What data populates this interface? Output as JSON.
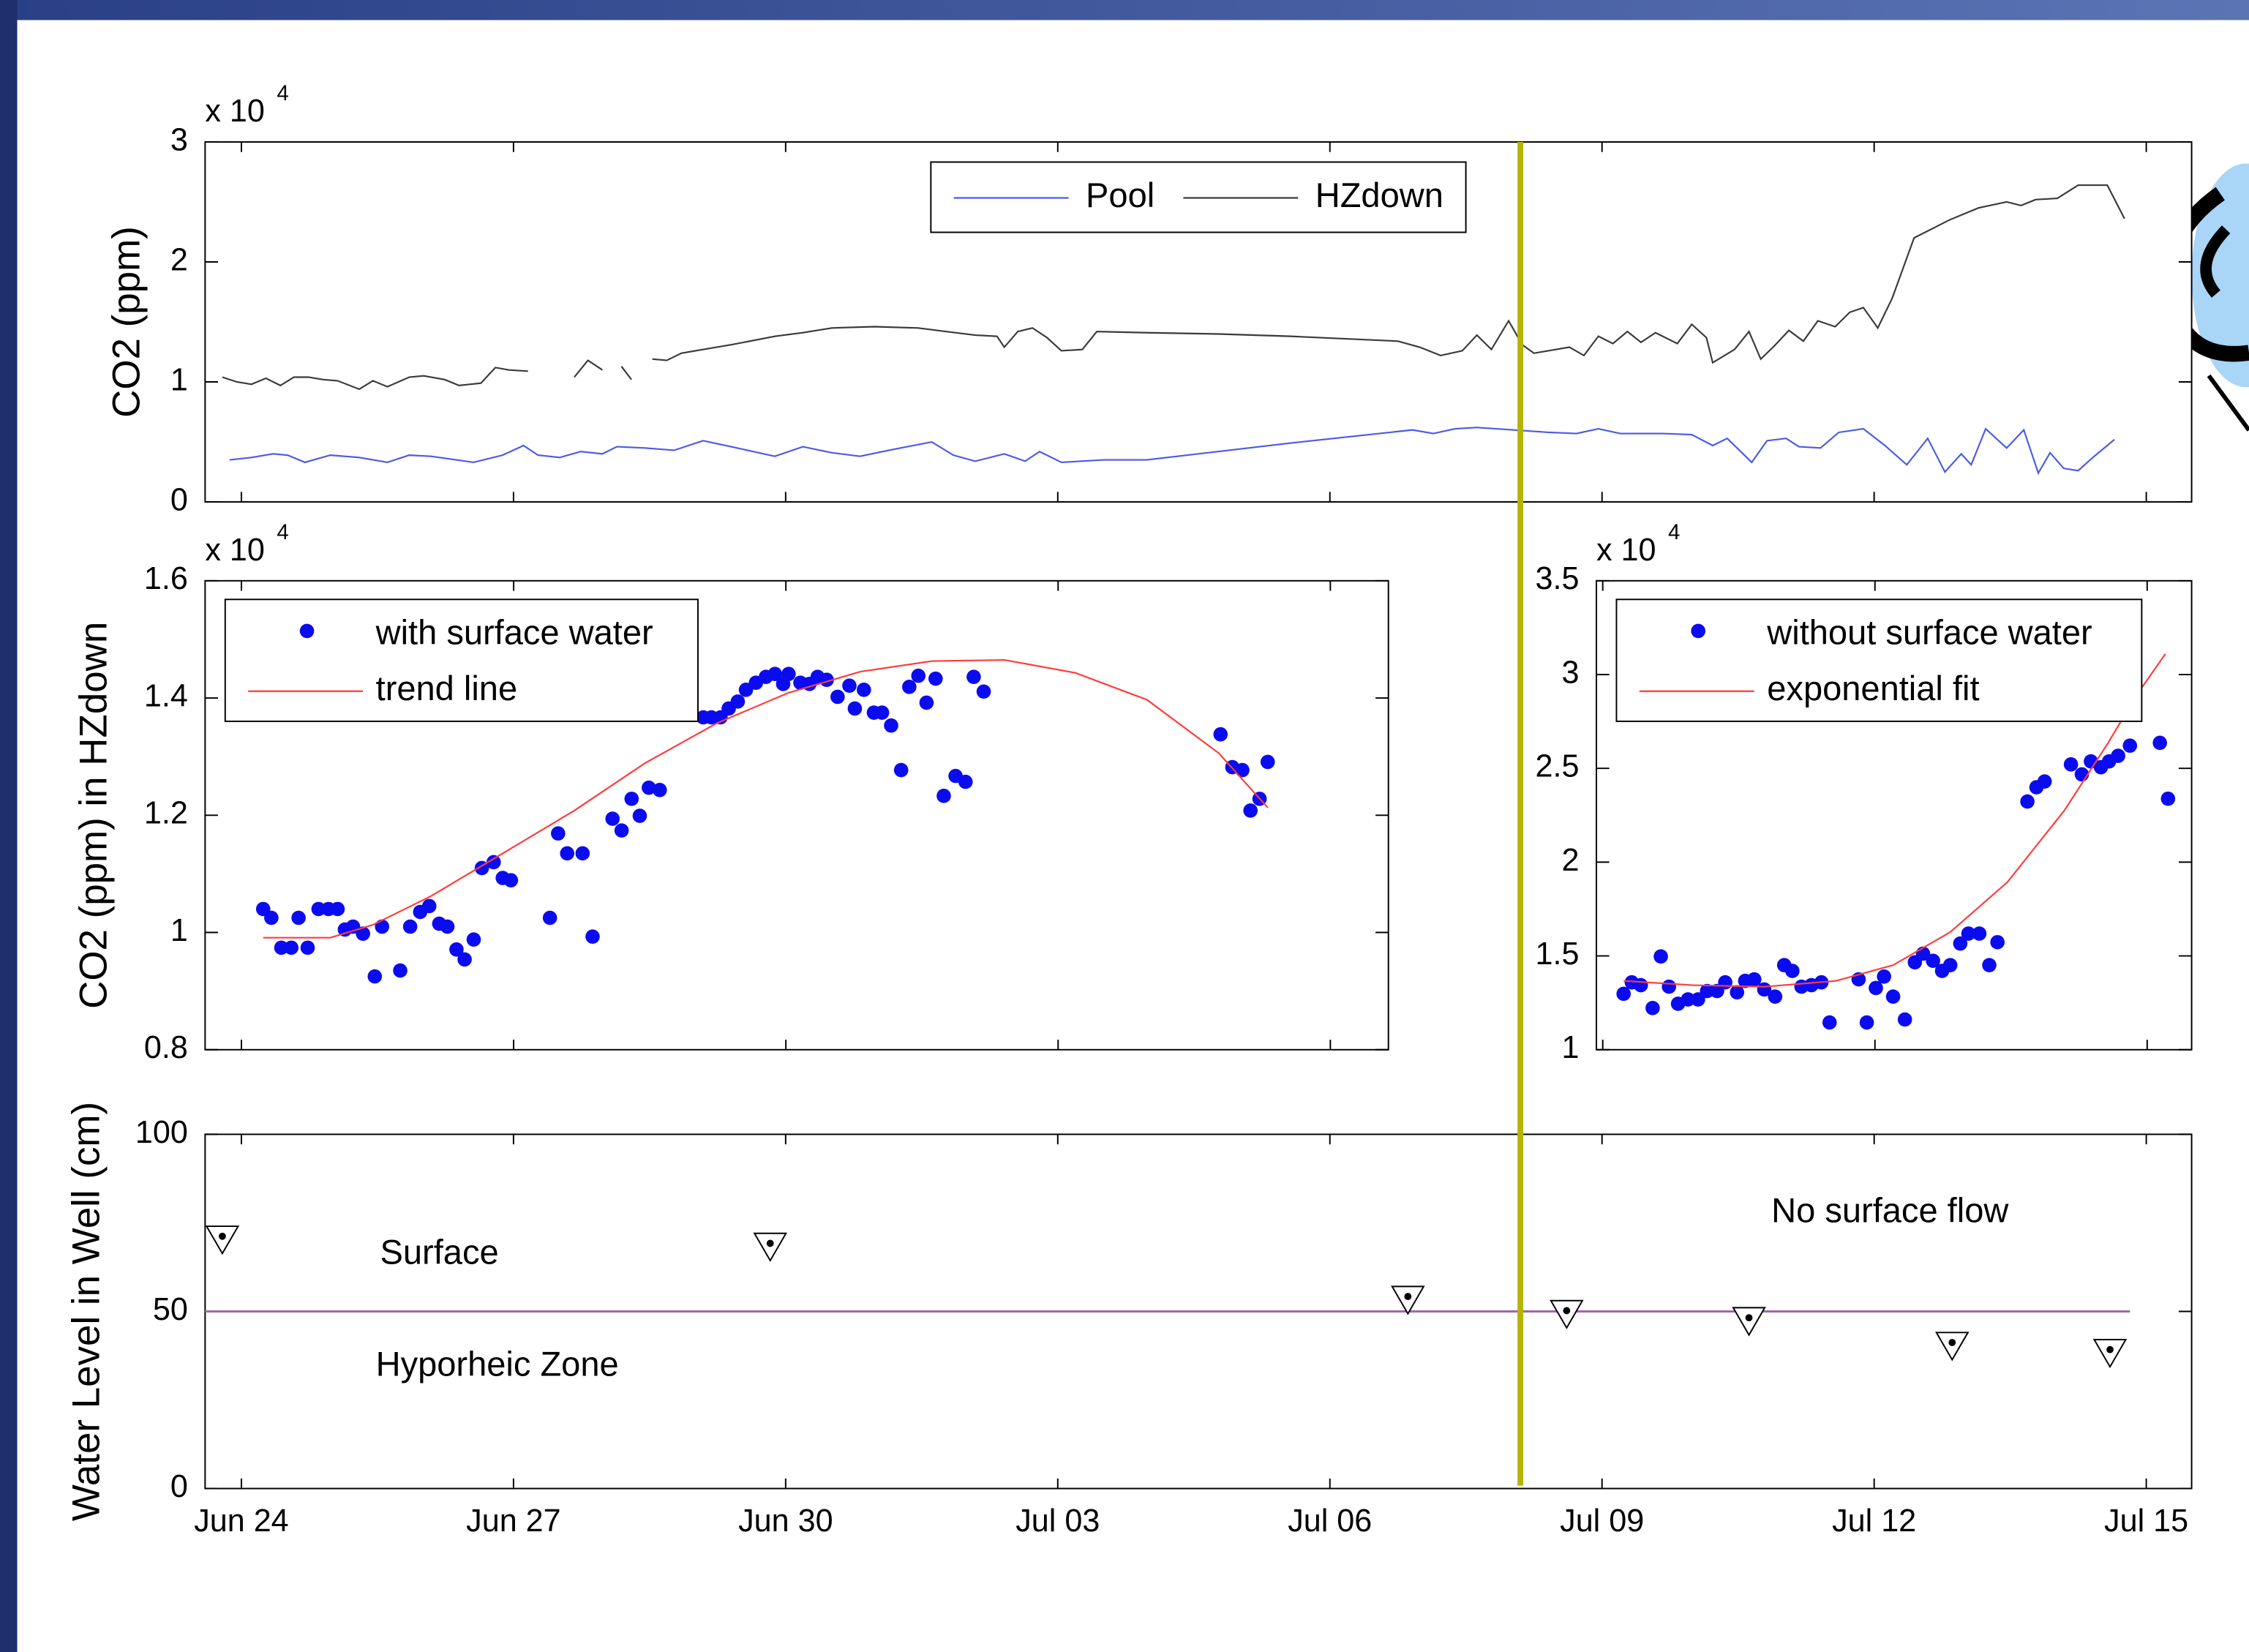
{
  "chart_data": [
    {
      "type": "line",
      "y_label": "CO2 (ppm)",
      "y_scale_label": {
        "base": "x 10",
        "exponent": "4"
      },
      "xlim": [
        -0.4,
        21.5
      ],
      "ylim": [
        0,
        30000
      ],
      "yticks": [
        0,
        {
          "value": 10000,
          "label": "1"
        },
        {
          "value": 20000,
          "label": "2"
        },
        {
          "value": 30000,
          "label": "3"
        }
      ],
      "legend": "top",
      "series": [
        {
          "name": "Pool",
          "color": "#4a5ae8",
          "x": [
            -0.13,
            0.11,
            0.35,
            0.51,
            0.7,
            0.98,
            1.3,
            1.61,
            1.85,
            2.09,
            2.56,
            2.88,
            3.11,
            3.27,
            3.51,
            3.74,
            3.98,
            4.14,
            4.45,
            4.77,
            5.09,
            5.4,
            5.88,
            6.19,
            6.51,
            6.82,
            7.14,
            7.61,
            7.85,
            8.09,
            8.41,
            8.64,
            8.8,
            9.04,
            9.51,
            9.98,
            11.56,
            12.91,
            13.14,
            13.38,
            13.62,
            14.41,
            14.72,
            14.96,
            15.2,
            15.67,
            15.99,
            16.22,
            16.38,
            16.65,
            16.82,
            17.03,
            17.17,
            17.41,
            17.61,
            17.88,
            18.12,
            18.36,
            18.59,
            18.78,
            18.96,
            19.07,
            19.23,
            19.46,
            19.65,
            19.81,
            19.94,
            20.09,
            20.25,
            20.41,
            20.65
          ],
          "values": [
            3500,
            3700,
            4000,
            3900,
            3300,
            3900,
            3700,
            3300,
            3900,
            3800,
            3300,
            3900,
            4700,
            3900,
            3700,
            4200,
            4000,
            4600,
            4500,
            4300,
            5100,
            4600,
            3800,
            4600,
            4100,
            3800,
            4300,
            5000,
            3900,
            3400,
            4000,
            3400,
            4200,
            3300,
            3500,
            3500,
            4900,
            6000,
            5700,
            6100,
            6200,
            5800,
            5700,
            6100,
            5700,
            5700,
            5600,
            4700,
            5300,
            3300,
            5100,
            5300,
            4600,
            4500,
            5800,
            6100,
            4700,
            3100,
            5300,
            2500,
            4000,
            3100,
            6100,
            4500,
            6000,
            2400,
            4100,
            2800,
            2600,
            3700,
            5200
          ]
        },
        {
          "name": "HZdown",
          "color": "#3a3a3a",
          "x": [
            -0.21,
            -0.05,
            0.11,
            0.27,
            0.43,
            0.58,
            0.74,
            0.9,
            1.06,
            1.3,
            1.45,
            1.61,
            1.85,
            2.01,
            2.24,
            2.4,
            2.64,
            2.8,
            2.95,
            3.16,
            null,
            3.67,
            3.82,
            3.98,
            null,
            4.19,
            4.3,
            null,
            4.53,
            4.69,
            4.85,
            5.09,
            5.4,
            5.88,
            6.19,
            6.51,
            6.98,
            7.46,
            7.77,
            8.09,
            8.33,
            8.41,
            8.56,
            8.72,
            8.88,
            9.04,
            9.27,
            9.43,
            9.98,
            10.77,
            11.56,
            12.75,
            12.99,
            13.22,
            13.46,
            13.62,
            13.78,
            13.97,
            14.12,
            14.25,
            14.49,
            14.64,
            14.8,
            14.96,
            15.12,
            15.28,
            15.43,
            15.59,
            15.83,
            15.99,
            16.15,
            16.22,
            16.46,
            16.62,
            16.75,
            16.9,
            17.06,
            17.22,
            17.38,
            17.57,
            17.73,
            17.88,
            18.04,
            18.2,
            18.44,
            18.83,
            19.15,
            19.46,
            19.62,
            19.78,
            20.02,
            20.25,
            20.57,
            20.76
          ],
          "values": [
            10400,
            10000,
            9800,
            10300,
            9700,
            10400,
            10400,
            10200,
            10100,
            9400,
            10100,
            9600,
            10400,
            10500,
            10200,
            9700,
            9900,
            11200,
            11000,
            10900,
            null,
            10400,
            11800,
            11000,
            null,
            11300,
            10200,
            null,
            11900,
            11800,
            12400,
            12700,
            13100,
            13800,
            14100,
            14500,
            14600,
            14500,
            14200,
            13900,
            13800,
            12900,
            14200,
            14500,
            13700,
            12600,
            12700,
            14200,
            14100,
            14000,
            13800,
            13400,
            12900,
            12200,
            12600,
            13900,
            12700,
            15100,
            13100,
            12400,
            12700,
            12900,
            12200,
            13800,
            13200,
            14200,
            13300,
            14100,
            13200,
            14800,
            13700,
            11600,
            12700,
            14200,
            11900,
            13000,
            14300,
            13400,
            15100,
            14600,
            15800,
            16200,
            14500,
            17000,
            22000,
            23500,
            24500,
            25000,
            24700,
            25200,
            25300,
            26400,
            26400,
            23600
          ]
        }
      ]
    },
    {
      "type": "scatter",
      "y_label": "CO2 (ppm) in HZdown",
      "y_scale_label": {
        "base": "x 10",
        "exponent": "4"
      },
      "xlim": [
        -0.4,
        12.64
      ],
      "ylim": [
        8000,
        16000
      ],
      "yticks": [
        {
          "value": 8000,
          "label": "0.8"
        },
        {
          "value": 10000,
          "label": "1"
        },
        {
          "value": 12000,
          "label": "1.2"
        },
        {
          "value": 14000,
          "label": "1.4"
        },
        {
          "value": 16000,
          "label": "1.6"
        }
      ],
      "legend": "top-left",
      "series": [
        {
          "name": "with surface water",
          "type": "scatter",
          "color": "#0b0bf0",
          "x": [
            0.24,
            0.33,
            0.44,
            0.55,
            0.63,
            0.73,
            0.85,
            0.96,
            1.06,
            1.14,
            1.23,
            1.34,
            1.47,
            1.55,
            1.75,
            1.86,
            1.97,
            2.07,
            2.18,
            2.27,
            2.37,
            2.46,
            2.56,
            2.65,
            2.78,
            2.88,
            2.97,
            3.4,
            3.49,
            3.59,
            3.76,
            3.87,
            4.09,
            4.19,
            4.3,
            4.39,
            4.49,
            4.61,
            5.09,
            5.18,
            5.28,
            5.37,
            5.47,
            5.56,
            5.67,
            5.78,
            5.88,
            5.97,
            6.03,
            6.16,
            6.26,
            6.35,
            6.45,
            6.57,
            6.7,
            6.76,
            6.86,
            6.97,
            7.06,
            7.16,
            7.27,
            7.36,
            7.46,
            7.55,
            7.65,
            7.74,
            7.87,
            7.98,
            8.07,
            8.18,
            10.79,
            10.92,
            11.03,
            11.12,
            11.22,
            11.31
          ],
          "values": [
            10400,
            10250,
            9740,
            9740,
            10250,
            9740,
            10400,
            10400,
            10400,
            10050,
            10100,
            9980,
            9250,
            10100,
            9350,
            10100,
            10350,
            10450,
            10150,
            10100,
            9710,
            9540,
            9880,
            11100,
            11200,
            10930,
            10890,
            10250,
            11690,
            11350,
            11350,
            9930,
            11940,
            11740,
            12280,
            11990,
            12470,
            12430,
            13670,
            13670,
            13670,
            13820,
            13940,
            14140,
            14260,
            14360,
            14410,
            14240,
            14410,
            14260,
            14240,
            14360,
            14310,
            14020,
            14210,
            13820,
            14140,
            13750,
            13750,
            13530,
            12770,
            14190,
            14380,
            13920,
            14330,
            12330,
            12670,
            12570,
            14360,
            14110,
            13380,
            12820,
            12770,
            12080,
            12280,
            12910
          ]
        },
        {
          "name": "trend line",
          "type": "line",
          "color": "#ff3b3b",
          "x": [
            0.24,
            0.98,
            1.45,
            2.09,
            2.88,
            3.67,
            4.45,
            5.24,
            6.03,
            6.82,
            7.61,
            8.41,
            9.19,
            9.98,
            10.77,
            11.31
          ],
          "values": [
            9910,
            9910,
            10130,
            10620,
            11350,
            12080,
            12890,
            13570,
            14090,
            14450,
            14630,
            14650,
            14430,
            13970,
            13060,
            12130
          ]
        }
      ]
    },
    {
      "type": "scatter",
      "y_scale_label": {
        "base": "x 10",
        "exponent": "4"
      },
      "xlim": [
        14.93,
        21.49
      ],
      "ylim": [
        10000,
        35000
      ],
      "yticks": [
        {
          "value": 10000,
          "label": "1"
        },
        {
          "value": 15000,
          "label": "1.5"
        },
        {
          "value": 20000,
          "label": "2"
        },
        {
          "value": 25000,
          "label": "2.5"
        },
        {
          "value": 30000,
          "label": "3"
        },
        {
          "value": 35000,
          "label": "3.5"
        }
      ],
      "legend": "top-left",
      "series": [
        {
          "name": "without surface water",
          "type": "scatter",
          "color": "#0b0bf0",
          "x": [
            15.23,
            15.32,
            15.42,
            15.55,
            15.64,
            15.73,
            15.83,
            15.94,
            16.05,
            16.15,
            16.26,
            16.35,
            16.48,
            16.57,
            16.67,
            16.78,
            16.9,
            17.0,
            17.09,
            17.19,
            17.3,
            17.41,
            17.5,
            17.82,
            17.91,
            18.01,
            18.1,
            18.2,
            18.33,
            18.44,
            18.53,
            18.64,
            18.74,
            18.83,
            18.94,
            19.03,
            19.15,
            19.26,
            19.35,
            19.68,
            19.78,
            19.87,
            20.16,
            20.28,
            20.38,
            20.49,
            20.58,
            20.68,
            20.81,
            21.14,
            21.23
          ],
          "values": [
            12980,
            13590,
            13440,
            12220,
            14970,
            13360,
            12450,
            12680,
            12680,
            13130,
            13130,
            13590,
            13060,
            13670,
            13750,
            13210,
            12830,
            14510,
            14200,
            13360,
            13440,
            13590,
            11450,
            13750,
            11450,
            13290,
            13900,
            12830,
            11610,
            14660,
            15120,
            14740,
            14200,
            14510,
            15660,
            16190,
            16190,
            14510,
            15730,
            23230,
            23990,
            24300,
            25210,
            24680,
            25370,
            25060,
            25370,
            25670,
            26210,
            26360,
            23380
          ]
        },
        {
          "name": "exponential fit",
          "type": "line",
          "color": "#ff3b3b",
          "x": [
            15.23,
            15.99,
            16.78,
            17.57,
            18.2,
            18.83,
            19.46,
            20.09,
            20.57,
            20.88,
            21.2
          ],
          "values": [
            13670,
            13440,
            13360,
            13670,
            14510,
            16270,
            18940,
            22770,
            26360,
            28880,
            31100
          ]
        }
      ]
    },
    {
      "type": "scatter",
      "marker": "inverted-triangle",
      "y_label": "Water Level in Well (cm)",
      "xlim": [
        -0.4,
        21.5
      ],
      "ylim": [
        0,
        100
      ],
      "yticks": [
        0,
        50,
        100
      ],
      "xticks": [
        {
          "value": 0,
          "label": "Jun 24"
        },
        {
          "value": 3,
          "label": "Jun 27"
        },
        {
          "value": 6,
          "label": "Jun 30"
        },
        {
          "value": 9,
          "label": "Jul 03"
        },
        {
          "value": 12,
          "label": "Jul 06"
        },
        {
          "value": 15,
          "label": "Jul 09"
        },
        {
          "value": 18,
          "label": "Jul 12"
        },
        {
          "value": 21,
          "label": "Jul 15"
        }
      ],
      "x": [
        -0.21,
        5.83,
        12.86,
        14.61,
        16.62,
        18.86,
        20.6
      ],
      "values": [
        70,
        68,
        53,
        49,
        47,
        40,
        38
      ],
      "reference_line": 50,
      "reference_color": "#9a6aa8",
      "annotations": [
        "Surface",
        "Hyporheic Zone",
        "No surface flow"
      ]
    }
  ]
}
